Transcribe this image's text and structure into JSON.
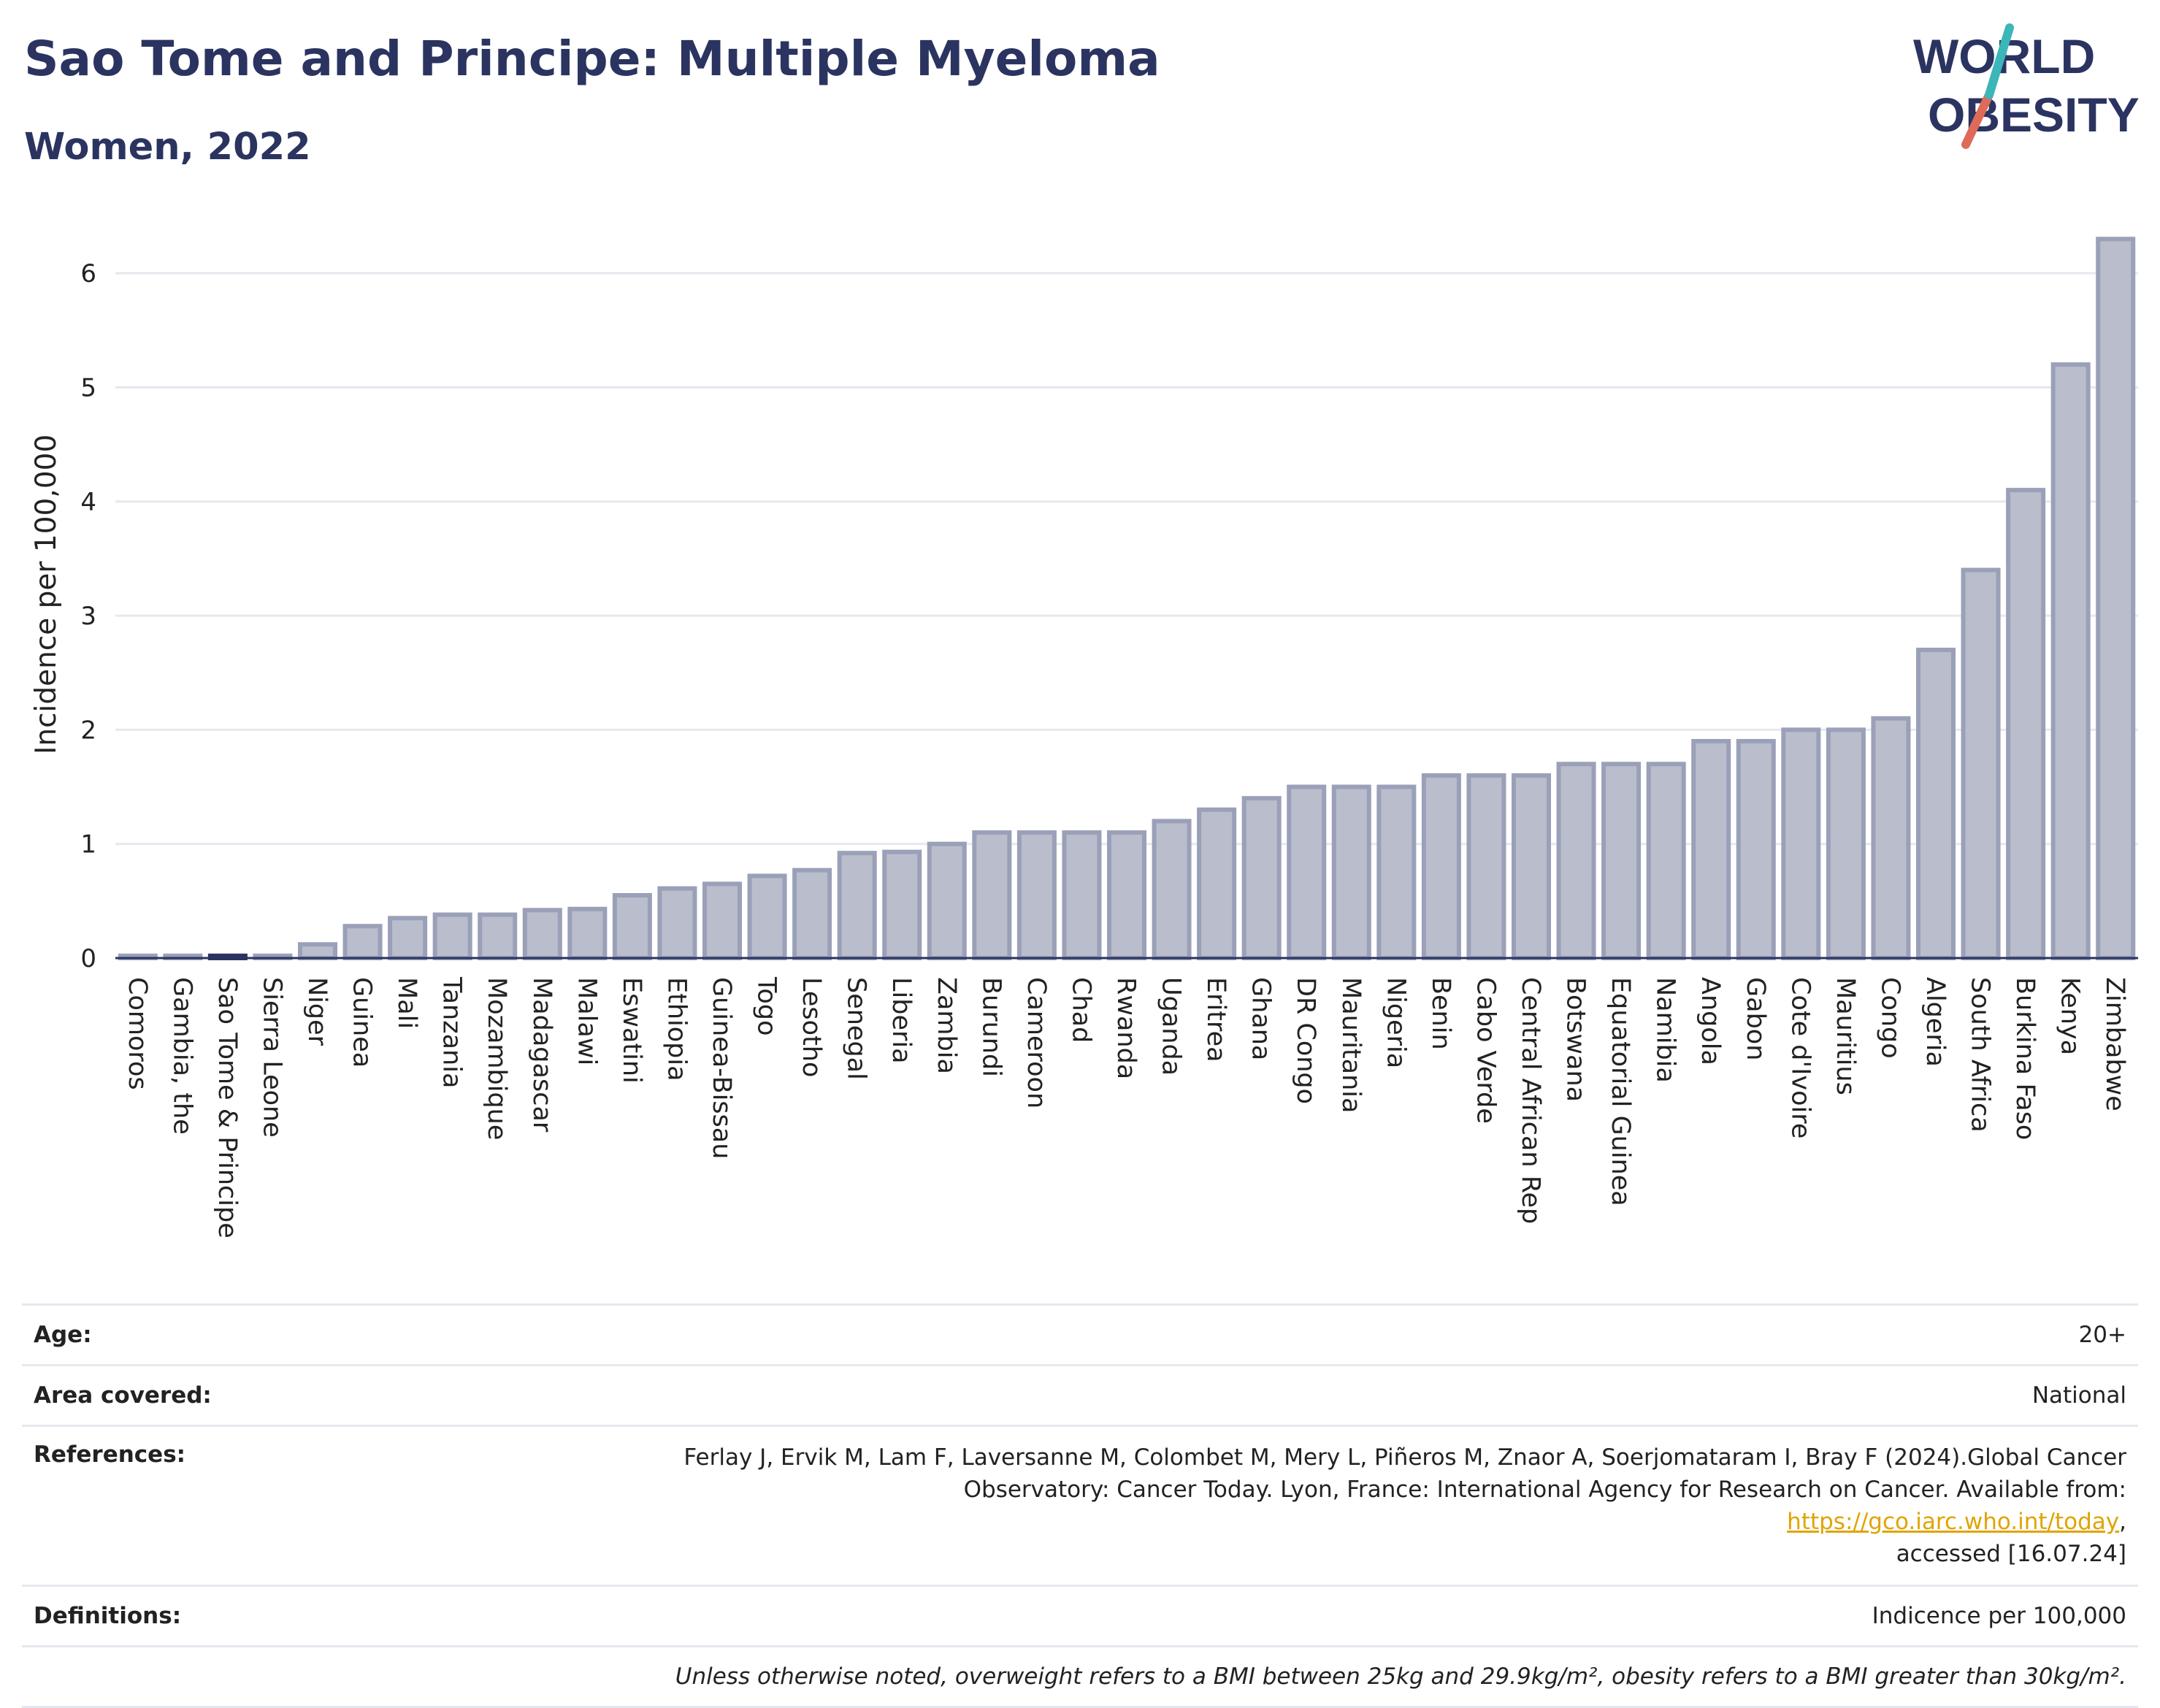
{
  "header": {
    "title": "Sao Tome and Principe: Multiple Myeloma",
    "subtitle": "Women, 2022",
    "logo_line1": "WORLD",
    "logo_line2": "OBESITY"
  },
  "chart_data": {
    "type": "bar",
    "ylabel": "Incidence per 100,000",
    "xlabel": "",
    "ylim": [
      0,
      6.5
    ],
    "yticks": [
      0,
      1,
      2,
      3,
      4,
      5,
      6
    ],
    "grid": true,
    "highlight": "Sao Tome & Principe",
    "categories": [
      "Comoros",
      "Gambia, the",
      "Sao Tome & Principe",
      "Sierra Leone",
      "Niger",
      "Guinea",
      "Mali",
      "Tanzania",
      "Mozambique",
      "Madagascar",
      "Malawi",
      "Eswatini",
      "Ethiopia",
      "Guinea-Bissau",
      "Togo",
      "Lesotho",
      "Senegal",
      "Liberia",
      "Zambia",
      "Burundi",
      "Cameroon",
      "Chad",
      "Rwanda",
      "Uganda",
      "Eritrea",
      "Ghana",
      "DR Congo",
      "Mauritania",
      "Nigeria",
      "Benin",
      "Cabo Verde",
      "Central African Rep",
      "Botswana",
      "Equatorial Guinea",
      "Namibia",
      "Angola",
      "Gabon",
      "Cote d'Ivoire",
      "Mauritius",
      "Congo",
      "Algeria",
      "South Africa",
      "Burkina Faso",
      "Kenya",
      "Zimbabwe"
    ],
    "values": [
      0.02,
      0.02,
      0.02,
      0.02,
      0.12,
      0.28,
      0.35,
      0.38,
      0.38,
      0.42,
      0.43,
      0.55,
      0.61,
      0.65,
      0.72,
      0.77,
      0.92,
      0.93,
      1.0,
      1.1,
      1.1,
      1.1,
      1.1,
      1.2,
      1.3,
      1.4,
      1.5,
      1.5,
      1.5,
      1.6,
      1.6,
      1.6,
      1.7,
      1.7,
      1.7,
      1.9,
      1.9,
      2.0,
      2.0,
      2.1,
      2.7,
      3.4,
      4.1,
      5.2,
      6.3
    ],
    "colors": {
      "bar": "#b9bdcc",
      "bar_stroke": "#9aa0b8",
      "highlight": "#2b3460",
      "grid": "#e6e8ef",
      "axis": "#2b3460"
    }
  },
  "info": {
    "age_label": "Age:",
    "age_value": "20+",
    "area_label": "Area covered:",
    "area_value": "National",
    "refs_label": "References:",
    "refs_line1": "Ferlay J, Ervik M, Lam F, Laversanne M, Colombet M, Mery L, Piñeros M, Znaor A, Soerjomataram I, Bray F (2024).Global Cancer",
    "refs_line2_pre": "Observatory: Cancer Today. Lyon, France: International Agency for Research on Cancer. Available from: ",
    "refs_link": "https://gco.iarc.who.int/today",
    "refs_line2_post": ",",
    "refs_line3": "accessed [16.07.24]",
    "def_label": "Definitions:",
    "def_value": "Indicence per 100,000",
    "note": "Unless otherwise noted, overweight refers to a BMI between 25kg and 29.9kg/m², obesity refers to a BMI greater than 30kg/m²."
  }
}
